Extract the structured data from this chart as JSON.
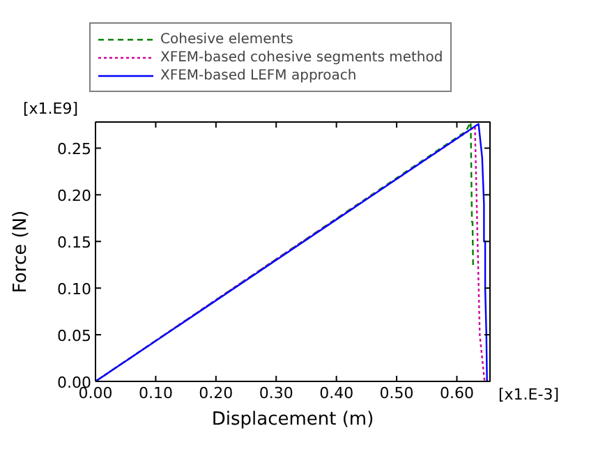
{
  "chart_data": {
    "type": "line",
    "xlabel": "Displacement (m)",
    "ylabel": "Force (N)",
    "annotations": [
      "[x1.E9]",
      "[x1.E-3]"
    ],
    "xlim": [
      0,
      0.655
    ],
    "ylim": [
      0,
      0.278
    ],
    "xticks": [
      {
        "value": 0,
        "label": "0.00"
      },
      {
        "value": 0.1,
        "label": "0.10"
      },
      {
        "value": 0.2,
        "label": "0.20"
      },
      {
        "value": 0.3,
        "label": "0.30"
      },
      {
        "value": 0.4,
        "label": "0.40"
      },
      {
        "value": 0.5,
        "label": "0.50"
      },
      {
        "value": 0.6,
        "label": "0.60"
      }
    ],
    "yticks": [
      {
        "value": 0,
        "label": "0.00"
      },
      {
        "value": 0.05,
        "label": "0.05"
      },
      {
        "value": 0.1,
        "label": "0.10"
      },
      {
        "value": 0.15,
        "label": "0.15"
      },
      {
        "value": 0.2,
        "label": "0.20"
      },
      {
        "value": 0.25,
        "label": "0.25"
      }
    ],
    "grid": false,
    "legend": "top",
    "series": [
      {
        "name": "Cohesive elements",
        "color": "#008000",
        "line_style": "dashed",
        "x": [
          0,
          0.3,
          0.615,
          0.623,
          0.625,
          0.626,
          0.627
        ],
        "values": [
          0,
          0.131,
          0.268,
          0.278,
          0.171,
          0.171,
          0.121
        ]
      },
      {
        "name": "XFEM-based cohesive segments method",
        "color": "#cc0099",
        "line_style": "dotted",
        "x": [
          0,
          0.3,
          0.63,
          0.638,
          0.646
        ],
        "values": [
          0,
          0.131,
          0.273,
          0.05,
          0
        ]
      },
      {
        "name": "XFEM-based LEFM approach",
        "color": "#0000ff",
        "line_style": "solid",
        "x": [
          0,
          0.3,
          0.636,
          0.642,
          0.645,
          0.645,
          0.647,
          0.647,
          0.649,
          0.65
        ],
        "values": [
          0,
          0.13,
          0.276,
          0.24,
          0.19,
          0.15,
          0.15,
          0.1,
          0.05,
          0
        ]
      }
    ]
  }
}
